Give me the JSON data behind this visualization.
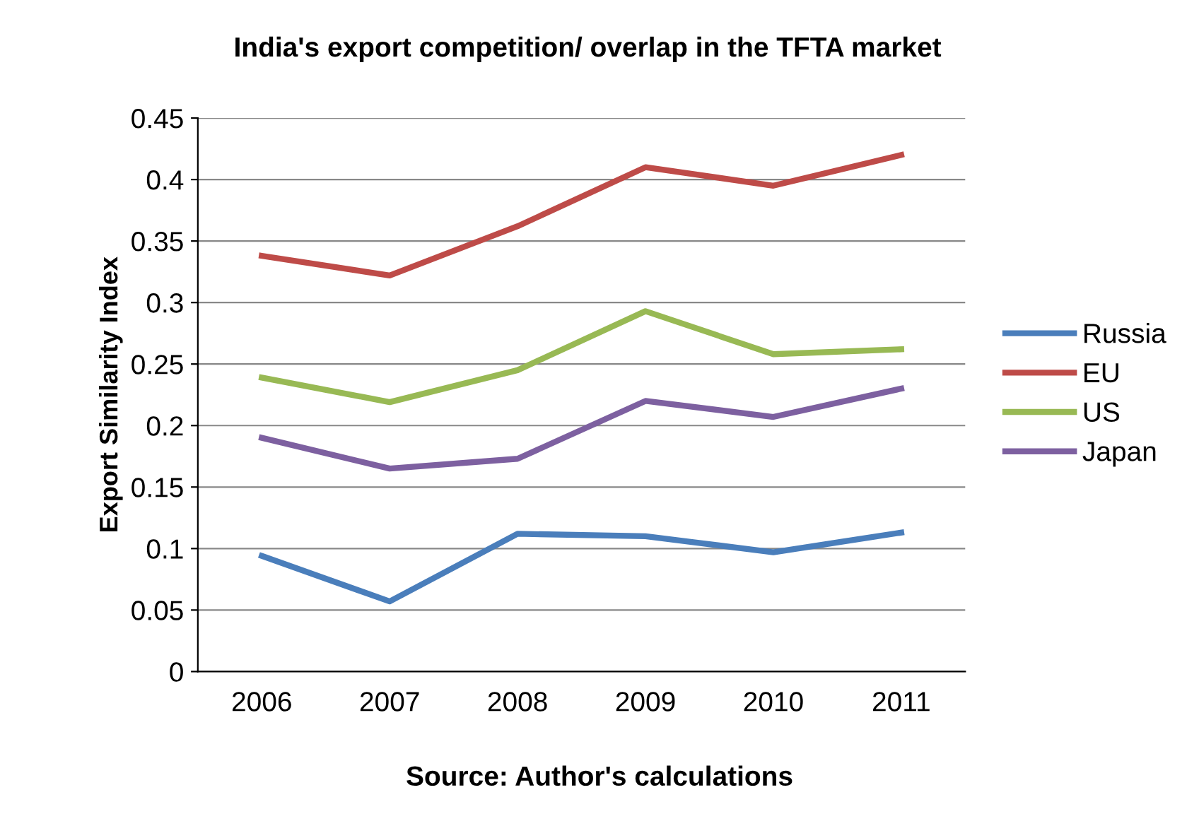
{
  "chart_data": {
    "type": "line",
    "title": "India's export competition/ overlap in the TFTA market",
    "ylabel": "Export Similarity Index",
    "categories": [
      "2006",
      "2007",
      "2008",
      "2009",
      "2010",
      "2011"
    ],
    "series": [
      {
        "name": "Russia",
        "color": "#4a7ebb",
        "values": [
          0.094,
          0.057,
          0.112,
          0.11,
          0.097,
          0.113
        ]
      },
      {
        "name": "EU",
        "color": "#be4b48",
        "values": [
          0.338,
          0.322,
          0.362,
          0.41,
          0.395,
          0.42
        ]
      },
      {
        "name": "US",
        "color": "#98b954",
        "values": [
          0.239,
          0.219,
          0.245,
          0.293,
          0.258,
          0.262
        ]
      },
      {
        "name": "Japan",
        "color": "#7d60a0",
        "values": [
          0.19,
          0.165,
          0.173,
          0.22,
          0.207,
          0.23
        ]
      }
    ],
    "ylim": [
      0,
      0.45
    ],
    "yticks": [
      0,
      0.05,
      0.1,
      0.15,
      0.2,
      0.25,
      0.3,
      0.35,
      0.4,
      0.45
    ],
    "grid": "y",
    "legend": "right",
    "marker": "none",
    "line_style": "solid",
    "annotations": [
      "Source: Author's calculations"
    ]
  }
}
